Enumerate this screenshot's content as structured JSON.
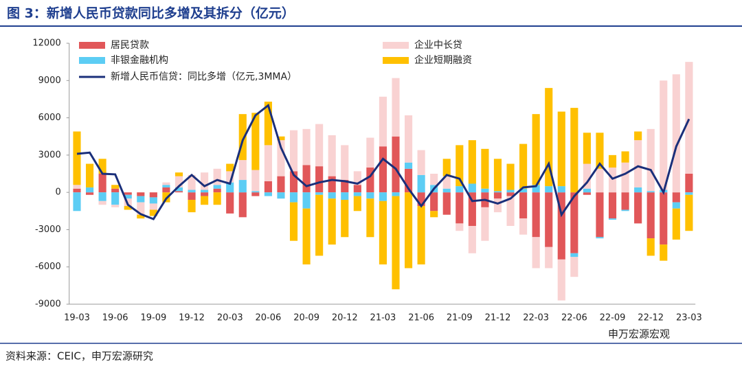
{
  "chart_data": {
    "type": "bar",
    "title": "图 3：新增人民币贷款同比多增及其拆分（亿元）",
    "source": "资料来源：CEIC，申万宏源研究",
    "watermark": "申万宏源宏观",
    "stacked": true,
    "categories": [
      "19-03",
      null,
      null,
      "19-06",
      null,
      null,
      "19-09",
      null,
      null,
      "19-12",
      null,
      null,
      "20-03",
      null,
      null,
      "20-06",
      null,
      null,
      "20-09",
      null,
      null,
      "20-12",
      null,
      null,
      "21-03",
      null,
      null,
      "21-06",
      null,
      null,
      "21-09",
      null,
      null,
      "21-12",
      null,
      null,
      "22-03",
      null,
      null,
      "22-06",
      null,
      null,
      "22-09",
      null,
      null,
      "22-12",
      null,
      null,
      "23-03"
    ],
    "ylim": [
      -9000,
      12000
    ],
    "yticks": [
      -9000,
      -6000,
      -3000,
      0,
      3000,
      6000,
      9000,
      12000
    ],
    "series": [
      {
        "name": "居民贷款",
        "type": "bar",
        "color": "#e15759",
        "values": [
          300,
          -200,
          1500,
          300,
          -200,
          -300,
          -400,
          400,
          100,
          -600,
          -300,
          300,
          -1700,
          -2000,
          -300,
          900,
          1300,
          1700,
          2200,
          2100,
          1300,
          1000,
          600,
          2000,
          3700,
          4500,
          1900,
          -1100,
          -1500,
          -1800,
          -2500,
          -2700,
          -1200,
          -500,
          -300,
          -2100,
          -3600,
          -4400,
          -5400,
          -4900,
          -200,
          -3600,
          -2100,
          -1400,
          -2500,
          -3700,
          -4200,
          -800,
          1500
        ]
      },
      {
        "name": "非银金融机构",
        "type": "bar",
        "color": "#5ccdf4",
        "values": [
          -1500,
          400,
          -700,
          -1000,
          -300,
          -500,
          -500,
          200,
          300,
          200,
          200,
          300,
          800,
          1000,
          100,
          -300,
          -500,
          -800,
          -1300,
          -200,
          -500,
          -600,
          -300,
          -500,
          -700,
          -300,
          500,
          1400,
          600,
          300,
          500,
          700,
          300,
          100,
          200,
          300,
          600,
          500,
          500,
          -300,
          300,
          -100,
          -100,
          -100,
          400,
          100,
          200,
          -500,
          -200
        ]
      },
      {
        "name": "企业中长贷",
        "type": "bar",
        "color": "#f9d2d2",
        "values": [
          300,
          0,
          -300,
          -200,
          -600,
          -1000,
          -500,
          200,
          900,
          1200,
          1400,
          1300,
          900,
          1600,
          1700,
          2900,
          2900,
          3300,
          2900,
          3400,
          3300,
          2800,
          1100,
          2400,
          4000,
          4700,
          3800,
          2000,
          900,
          1000,
          -600,
          -2200,
          -2700,
          -1100,
          -2400,
          -1300,
          -2500,
          -1700,
          -3300,
          -1600,
          2000,
          1900,
          2000,
          2400,
          3800,
          5000,
          8800,
          9500,
          9000
        ]
      },
      {
        "name": "企业短期融资",
        "type": "bar",
        "color": "#ffc000",
        "values": [
          4300,
          1900,
          1200,
          300,
          -300,
          -300,
          -500,
          -800,
          300,
          -1000,
          -700,
          -1000,
          600,
          3700,
          4600,
          3500,
          300,
          -3100,
          -4500,
          -4900,
          -3700,
          -3000,
          -1200,
          -3100,
          -5100,
          -7500,
          -6100,
          -4700,
          -500,
          1400,
          3300,
          3500,
          3200,
          2600,
          2100,
          3600,
          5700,
          7900,
          6000,
          6800,
          2500,
          2900,
          1000,
          900,
          700,
          -1400,
          -1300,
          -2500,
          -2900
        ]
      },
      {
        "name": "新增人民币信贷：同比多增（亿元,3MMA）",
        "type": "line",
        "color": "#1a2f7a",
        "values": [
          3100,
          3200,
          1500,
          1450,
          -1000,
          -1750,
          -2150,
          -500,
          500,
          1400,
          500,
          1000,
          700,
          4200,
          6200,
          7000,
          3600,
          1400,
          500,
          800,
          1000,
          900,
          700,
          1300,
          2700,
          1900,
          300,
          -1100,
          300,
          1400,
          1100,
          -700,
          -600,
          -900,
          -500,
          400,
          500,
          2300,
          -1800,
          -300,
          800,
          2300,
          1100,
          1500,
          2100,
          1800,
          0,
          3700,
          5900
        ]
      }
    ]
  }
}
